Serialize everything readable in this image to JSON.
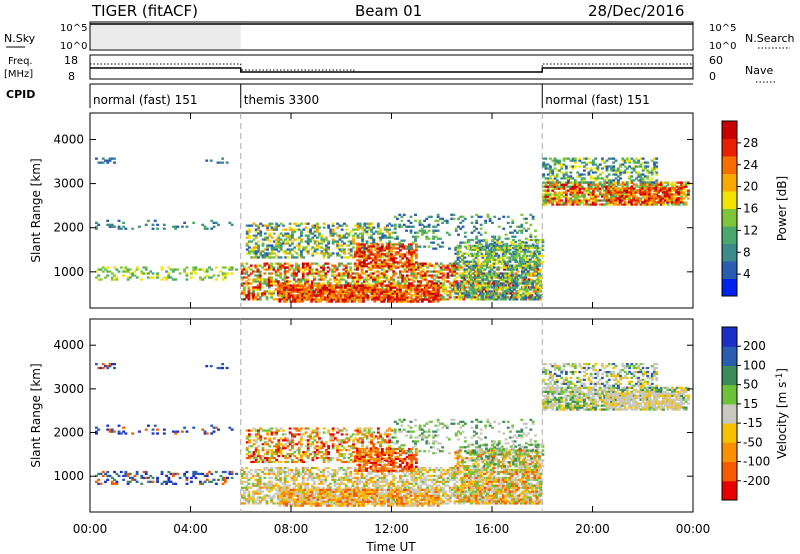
{
  "header": {
    "radar": "TIGER (fitACF)",
    "beam": "Beam 01",
    "date": "28/Dec/2016"
  },
  "top_panels": {
    "nsky_label": "N.Sky",
    "nsky_ticks": [
      "10^5",
      "10^0"
    ],
    "nsearch_label": "N.Search",
    "nsearch_ticks": [
      "10^5",
      "10^0"
    ],
    "freq_label_1": "Freq.",
    "freq_label_2": "[MHz]",
    "freq_ticks": [
      "18",
      "8"
    ],
    "nave_label": "Nave",
    "nave_ticks": [
      "60",
      "0"
    ],
    "cpid_label": "CPID",
    "cpid_segments": [
      {
        "label": "normal (fast) 151",
        "start": 0,
        "end": 6
      },
      {
        "label": "themis 3300",
        "start": 6,
        "end": 18
      },
      {
        "label": "normal (fast) 151",
        "start": 18,
        "end": 24
      }
    ]
  },
  "chart_data": [
    {
      "type": "heatmap",
      "ylabel": "Slant Range [km]",
      "ylim": [
        180,
        4600
      ],
      "y_ticks": [
        "1000",
        "2000",
        "3000",
        "4000"
      ],
      "xlim": [
        0,
        24
      ],
      "colorbar_label": "Power [dB]",
      "colorbar_ticks": [
        "4",
        "8",
        "12",
        "16",
        "20",
        "24",
        "28"
      ],
      "colorbar_range": [
        0,
        32
      ],
      "colorbar_colors": [
        "#0022ee",
        "#2a5cb0",
        "#3d8a8a",
        "#4aa96a",
        "#7dc63a",
        "#f4e300",
        "#f9a800",
        "#f96c00",
        "#e82000",
        "#c80000"
      ]
    },
    {
      "type": "heatmap",
      "ylabel": "Velocity [m s-1]",
      "ylabel_axis": "Slant Range [km]",
      "ylim": [
        180,
        4600
      ],
      "y_ticks": [
        "1000",
        "2000",
        "3000",
        "4000"
      ],
      "xlim": [
        0,
        24
      ],
      "colorbar_label": "Velocity [m s",
      "colorbar_sup": "-1",
      "colorbar_close": "]",
      "colorbar_ticks": [
        "200",
        "100",
        "50",
        "15",
        "-15",
        "-50",
        "-100",
        "-200"
      ],
      "colorbar_colors": [
        "#1a2fc8",
        "#2a5cb0",
        "#3d8a5a",
        "#6dc23a",
        "#c8c8c0",
        "#f7c000",
        "#f99000",
        "#f85a00",
        "#e80000"
      ]
    }
  ],
  "x_axis": {
    "ticks": [
      "00:00",
      "04:00",
      "08:00",
      "12:00",
      "16:00",
      "20:00",
      "00:00"
    ],
    "label": "Time UT"
  }
}
